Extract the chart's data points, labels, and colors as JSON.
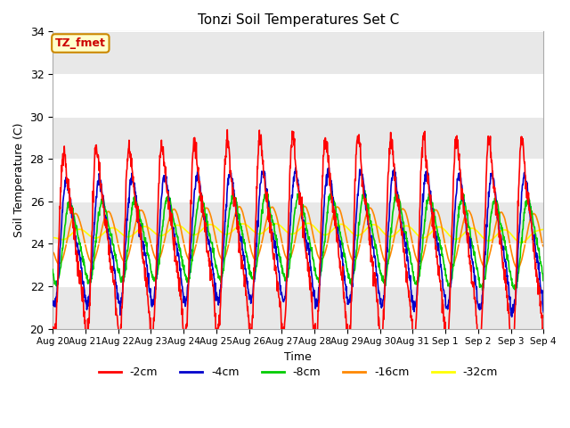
{
  "title": "Tonzi Soil Temperatures Set C",
  "xlabel": "Time",
  "ylabel": "Soil Temperature (C)",
  "ylim": [
    20,
    34
  ],
  "yticks": [
    20,
    22,
    24,
    26,
    28,
    30,
    32,
    34
  ],
  "line_colors": {
    "-2cm": "#ff0000",
    "-4cm": "#0000cc",
    "-8cm": "#00cc00",
    "-16cm": "#ff8800",
    "-32cm": "#ffff00"
  },
  "legend_labels": [
    "-2cm",
    "-4cm",
    "-8cm",
    "-16cm",
    "-32cm"
  ],
  "annotation_text": "TZ_fmet",
  "annotation_bg": "#ffffcc",
  "annotation_border": "#cc8800",
  "annotation_text_color": "#cc0000",
  "plot_bg": "#ffffff",
  "axes_bg": "#ffffff",
  "band_color": "#e8e8e8",
  "n_days": 15,
  "x_tick_labels": [
    "Aug 20",
    "Aug 21",
    "Aug 22",
    "Aug 23",
    "Aug 24",
    "Aug 25",
    "Aug 26",
    "Aug 27",
    "Aug 28",
    "Aug 29",
    "Aug 30",
    "Aug 31",
    "Sep 1",
    "Sep 2",
    "Sep 3",
    "Sep 4"
  ],
  "samples_per_day": 96
}
